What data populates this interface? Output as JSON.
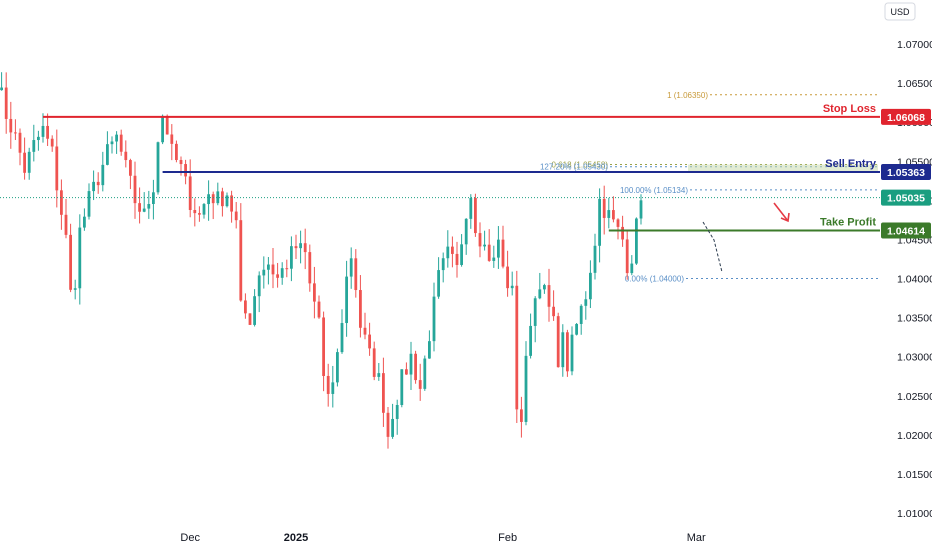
{
  "chart_data": {
    "type": "candlestick",
    "currency": "USD",
    "y_ticks": [
      "1.07000",
      "1.06500",
      "1.06000",
      "1.05500",
      "1.05000",
      "1.04500",
      "1.04000",
      "1.03500",
      "1.03000",
      "1.02500",
      "1.02000",
      "1.01500",
      "1.01000"
    ],
    "y_tick_values": [
      1.07,
      1.065,
      1.06,
      1.055,
      1.05,
      1.045,
      1.04,
      1.035,
      1.03,
      1.025,
      1.02,
      1.015,
      1.01
    ],
    "ylim": [
      1.0075,
      1.0735
    ],
    "x_labels": [
      {
        "text": "Dec",
        "bar": 42,
        "bold": false
      },
      {
        "text": "2025",
        "bar": 65,
        "bold": true
      },
      {
        "text": "Feb",
        "bar": 111,
        "bold": false
      },
      {
        "text": "Mar",
        "bar": 152,
        "bold": false
      }
    ],
    "bar_count": 175,
    "series_anchors": [
      [
        0,
        1.0655
      ],
      [
        2,
        1.061
      ],
      [
        4,
        1.058
      ],
      [
        6,
        1.054
      ],
      [
        8,
        1.057
      ],
      [
        10,
        1.059
      ],
      [
        12,
        1.056
      ],
      [
        13,
        1.052
      ],
      [
        15,
        1.045
      ],
      [
        16,
        1.038
      ],
      [
        17,
        1.04
      ],
      [
        18,
        1.046
      ],
      [
        20,
        1.05
      ],
      [
        22,
        1.053
      ],
      [
        24,
        1.056
      ],
      [
        26,
        1.058
      ],
      [
        28,
        1.054
      ],
      [
        30,
        1.05
      ],
      [
        32,
        1.048
      ],
      [
        34,
        1.052
      ],
      [
        35,
        1.058
      ],
      [
        36,
        1.061
      ],
      [
        37,
        1.059
      ],
      [
        38,
        1.056
      ],
      [
        40,
        1.054
      ],
      [
        42,
        1.05
      ],
      [
        44,
        1.048
      ],
      [
        46,
        1.051
      ],
      [
        48,
        1.05
      ],
      [
        50,
        1.051
      ],
      [
        52,
        1.047
      ],
      [
        53,
        1.036
      ],
      [
        55,
        1.035
      ],
      [
        57,
        1.041
      ],
      [
        59,
        1.042
      ],
      [
        61,
        1.04
      ],
      [
        63,
        1.042
      ],
      [
        65,
        1.044
      ],
      [
        67,
        1.043
      ],
      [
        68,
        1.039
      ],
      [
        70,
        1.035
      ],
      [
        71,
        1.027
      ],
      [
        72,
        1.024
      ],
      [
        74,
        1.03
      ],
      [
        76,
        1.04
      ],
      [
        77,
        1.043
      ],
      [
        78,
        1.039
      ],
      [
        79,
        1.034
      ],
      [
        81,
        1.03
      ],
      [
        83,
        1.027
      ],
      [
        84,
        1.024
      ],
      [
        85,
        1.02
      ],
      [
        86,
        1.023
      ],
      [
        88,
        1.027
      ],
      [
        90,
        1.03
      ],
      [
        92,
        1.026
      ],
      [
        94,
        1.033
      ],
      [
        96,
        1.04
      ],
      [
        98,
        1.043
      ],
      [
        100,
        1.041
      ],
      [
        102,
        1.049
      ],
      [
        103,
        1.051
      ],
      [
        104,
        1.047
      ],
      [
        106,
        1.044
      ],
      [
        108,
        1.042
      ],
      [
        109,
        1.045
      ],
      [
        110,
        1.041
      ],
      [
        112,
        1.038
      ],
      [
        113,
        1.024
      ],
      [
        114,
        1.022
      ],
      [
        115,
        1.029
      ],
      [
        116,
        1.035
      ],
      [
        118,
        1.04
      ],
      [
        120,
        1.036
      ],
      [
        121,
        1.034
      ],
      [
        122,
        1.03
      ],
      [
        123,
        1.032
      ],
      [
        124,
        1.029
      ],
      [
        126,
        1.034
      ],
      [
        128,
        1.038
      ],
      [
        130,
        1.045
      ],
      [
        131,
        1.05
      ],
      [
        132,
        1.049
      ],
      [
        134,
        1.047
      ],
      [
        136,
        1.045
      ],
      [
        137,
        1.042
      ],
      [
        138,
        1.043
      ],
      [
        140,
        1.05
      ]
    ],
    "levels": [
      {
        "name": "Stop Loss",
        "price": 1.06068,
        "value_text": "1.06068",
        "color": "#e0242e",
        "x_start_bar": 10
      },
      {
        "name": "Sell Entry",
        "price": 1.05363,
        "value_text": "1.05363",
        "color": "#1d2a8f",
        "x_start_bar": 36
      },
      {
        "name": "Take Profit",
        "price": 1.04614,
        "value_text": "1.04614",
        "color": "#3b7a2a",
        "x_start_bar": 133
      },
      {
        "name": "",
        "price": 1.05035,
        "value_text": "1.05035",
        "color": "#1a9e80",
        "x_start_bar": 0
      }
    ],
    "fib_levels": [
      {
        "label": "1 (1.06350)",
        "price": 1.0635,
        "color": "#c89a3a"
      },
      {
        "label": "0.618 (1.05458)",
        "price": 1.05458,
        "color": "#9aa04a"
      },
      {
        "label": "127.20% (1.05430)",
        "price": 1.0543,
        "color": "#5a8fc7"
      },
      {
        "label": "100.00% (1.05134)",
        "price": 1.05134,
        "color": "#5a8fc7"
      },
      {
        "label": "0.00% (1.04000)",
        "price": 1.04,
        "color": "#5a8fc7"
      }
    ]
  }
}
